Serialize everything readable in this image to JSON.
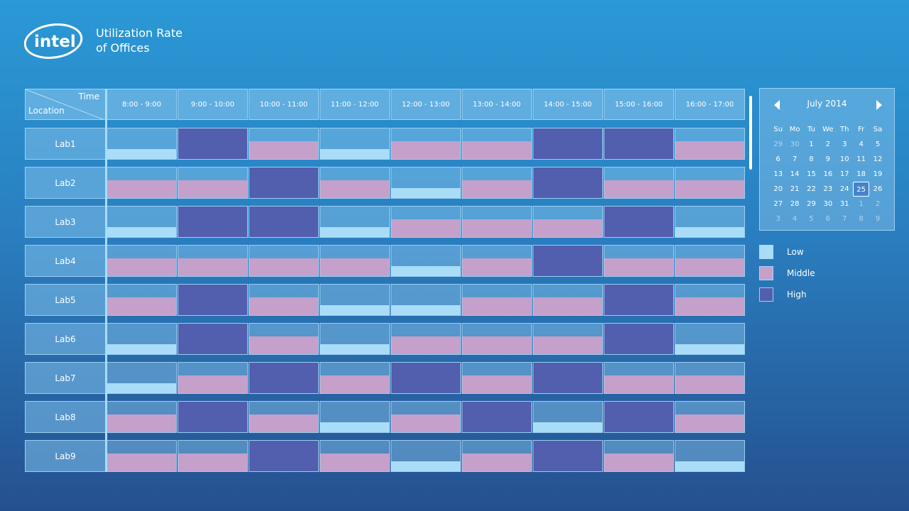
{
  "header": {
    "logo_text": "intel",
    "title_line1": "Utilization Rate",
    "title_line2": "of Offices"
  },
  "grid": {
    "corner_time": "Time",
    "corner_location": "Location",
    "columns": [
      "8:00 - 9:00",
      "9:00 - 10:00",
      "10:00 - 11:00",
      "11:00 - 12:00",
      "12:00 - 13:00",
      "13:00 - 14:00",
      "14:00 - 15:00",
      "15:00 - 16:00",
      "16:00 - 17:00"
    ],
    "rows": [
      {
        "label": "Lab1",
        "levels": [
          "low",
          "high",
          "middle",
          "low",
          "middle",
          "middle",
          "high",
          "high",
          "middle"
        ]
      },
      {
        "label": "Lab2",
        "levels": [
          "middle",
          "middle",
          "high",
          "middle",
          "low",
          "middle",
          "high",
          "middle",
          "middle"
        ]
      },
      {
        "label": "Lab3",
        "levels": [
          "low",
          "high",
          "high",
          "low",
          "middle",
          "middle",
          "middle",
          "high",
          "low"
        ]
      },
      {
        "label": "Lab4",
        "levels": [
          "middle",
          "middle",
          "middle",
          "middle",
          "low",
          "middle",
          "high",
          "middle",
          "middle"
        ]
      },
      {
        "label": "Lab5",
        "levels": [
          "middle",
          "high",
          "middle",
          "low",
          "low",
          "middle",
          "middle",
          "high",
          "middle"
        ]
      },
      {
        "label": "Lab6",
        "levels": [
          "low",
          "high",
          "middle",
          "low",
          "middle",
          "middle",
          "middle",
          "high",
          "low"
        ]
      },
      {
        "label": "Lab7",
        "levels": [
          "low",
          "middle",
          "high",
          "middle",
          "high",
          "middle",
          "high",
          "middle",
          "middle"
        ]
      },
      {
        "label": "Lab8",
        "levels": [
          "middle",
          "high",
          "middle",
          "low",
          "middle",
          "high",
          "low",
          "high",
          "middle"
        ]
      },
      {
        "label": "Lab9",
        "levels": [
          "middle",
          "middle",
          "high",
          "middle",
          "low",
          "middle",
          "high",
          "middle",
          "low"
        ]
      }
    ]
  },
  "levels": {
    "low": {
      "color": "#a9dcf7",
      "fill_fraction": 0.33
    },
    "middle": {
      "color": "#c4a0cb",
      "fill_fraction": 0.58
    },
    "high": {
      "color": "#515fae",
      "fill_fraction": 1.0
    }
  },
  "calendar": {
    "month_label": "July 2014",
    "weekdays": [
      "Su",
      "Mo",
      "Tu",
      "We",
      "Th",
      "Fr",
      "Sa"
    ],
    "weeks": [
      [
        "29",
        "30",
        "1",
        "2",
        "3",
        "4",
        "5"
      ],
      [
        "6",
        "7",
        "8",
        "9",
        "10",
        "11",
        "12"
      ],
      [
        "13",
        "14",
        "15",
        "16",
        "17",
        "18",
        "19"
      ],
      [
        "20",
        "21",
        "22",
        "23",
        "24",
        "25",
        "26"
      ],
      [
        "27",
        "28",
        "29",
        "30",
        "31",
        "1",
        "2"
      ],
      [
        "3",
        "4",
        "5",
        "6",
        "7",
        "8",
        "9"
      ]
    ],
    "selected_day": "25",
    "icons": {
      "prev": "chevron-left-icon",
      "next": "chevron-right-icon"
    }
  },
  "legend": [
    {
      "label": "Low",
      "color": "#a9dcf7"
    },
    {
      "label": "Middle",
      "color": "#c4a0cb"
    },
    {
      "label": "High",
      "color": "#515fae"
    }
  ]
}
